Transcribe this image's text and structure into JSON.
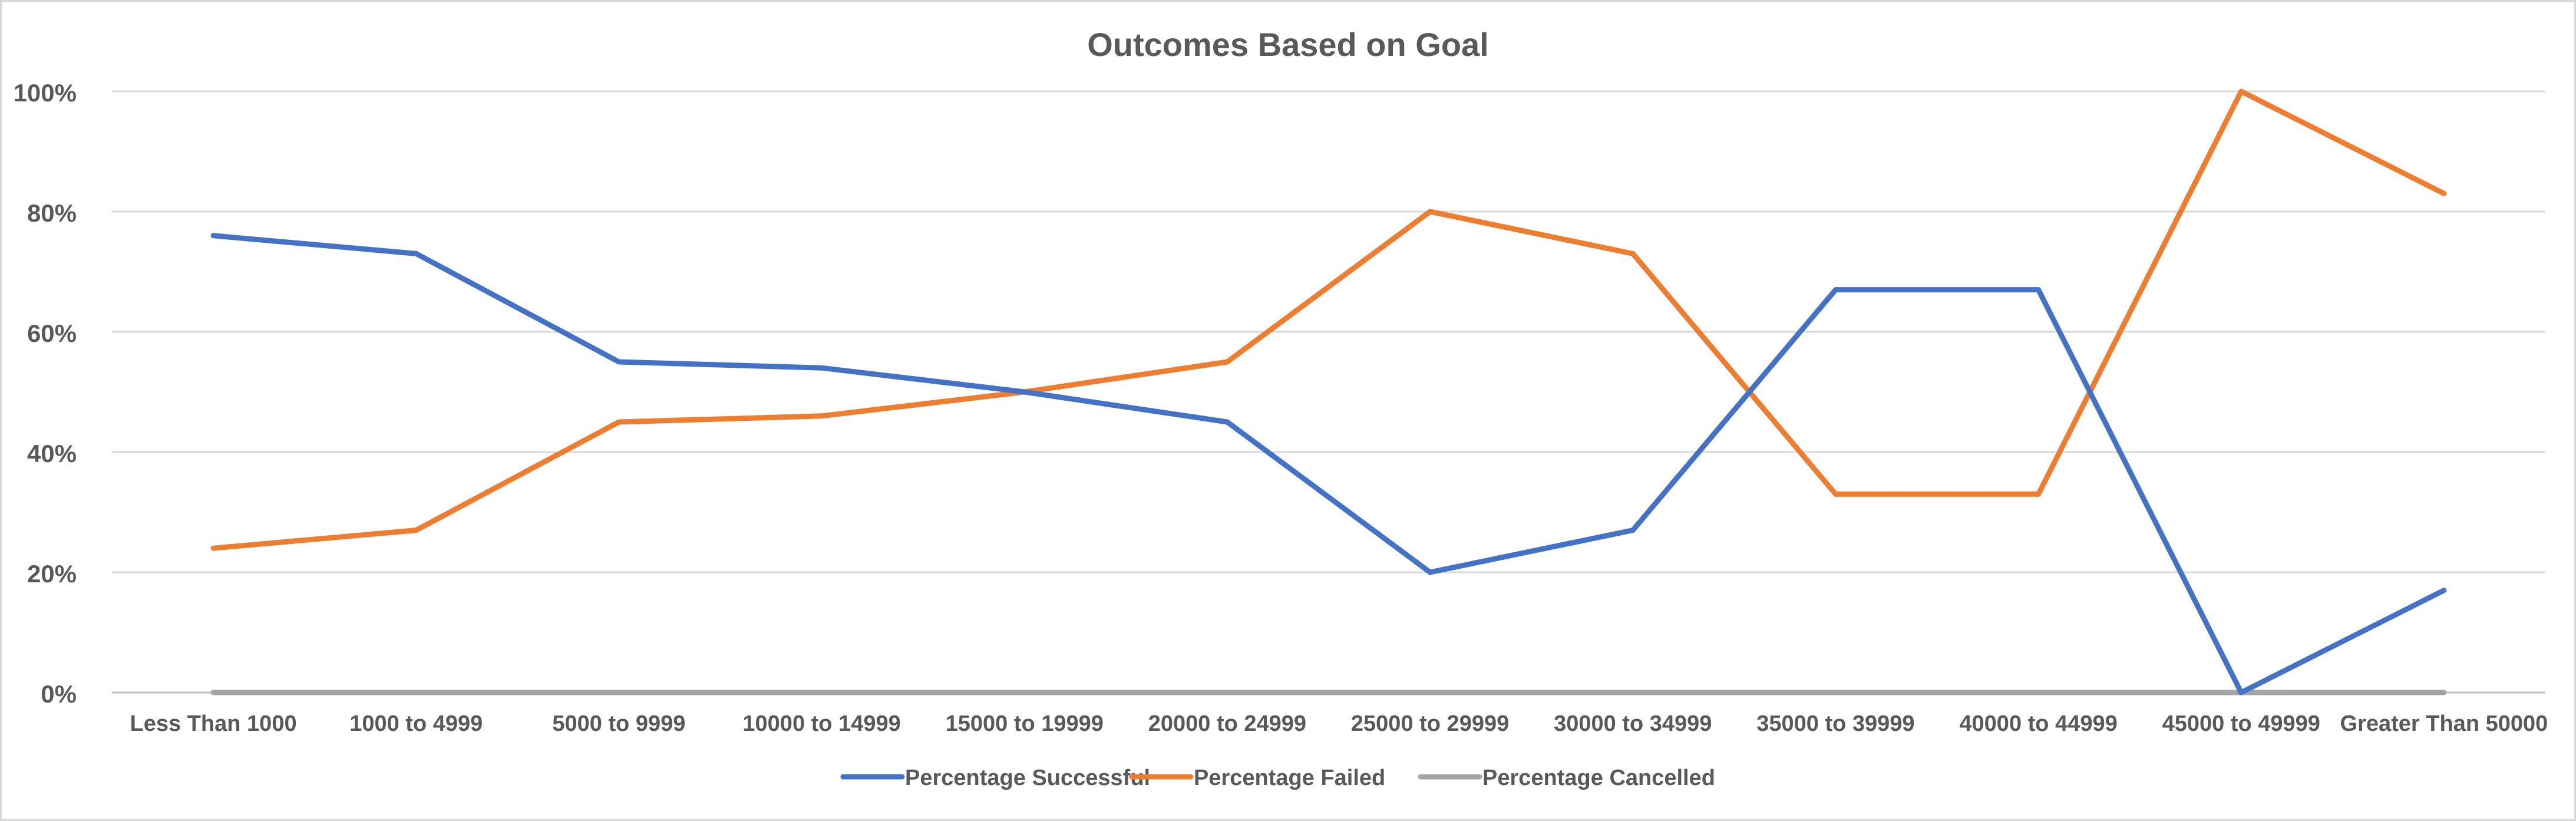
{
  "chart_data": {
    "type": "line",
    "title": "Outcomes Based on Goal",
    "xlabel": "",
    "ylabel": "",
    "categories": [
      "Less Than 1000",
      "1000 to 4999",
      "5000 to 9999",
      "10000 to 14999",
      "15000 to 19999",
      "20000 to 24999",
      "25000 to 29999",
      "30000 to 34999",
      "35000 to 39999",
      "40000 to 44999",
      "45000 to 49999",
      "Greater Than 50000"
    ],
    "ylim": [
      0,
      100
    ],
    "yticks": [
      {
        "value": 0,
        "label": "0%"
      },
      {
        "value": 20,
        "label": "20%"
      },
      {
        "value": 40,
        "label": "40%"
      },
      {
        "value": 60,
        "label": "60%"
      },
      {
        "value": 80,
        "label": "80%"
      },
      {
        "value": 100,
        "label": "100%"
      }
    ],
    "grid": true,
    "legend_position": "bottom",
    "series": [
      {
        "name": "Percentage Successful",
        "color": "#4472C4",
        "values": [
          76,
          73,
          55,
          54,
          50,
          45,
          20,
          27,
          67,
          67,
          0,
          17
        ]
      },
      {
        "name": "Percentage Failed",
        "color": "#ED7D31",
        "values": [
          24,
          27,
          45,
          46,
          50,
          55,
          80,
          73,
          33,
          33,
          100,
          83
        ]
      },
      {
        "name": "Percentage Cancelled",
        "color": "#A5A5A5",
        "values": [
          0,
          0,
          0,
          0,
          0,
          0,
          0,
          0,
          0,
          0,
          0,
          0
        ]
      }
    ]
  }
}
